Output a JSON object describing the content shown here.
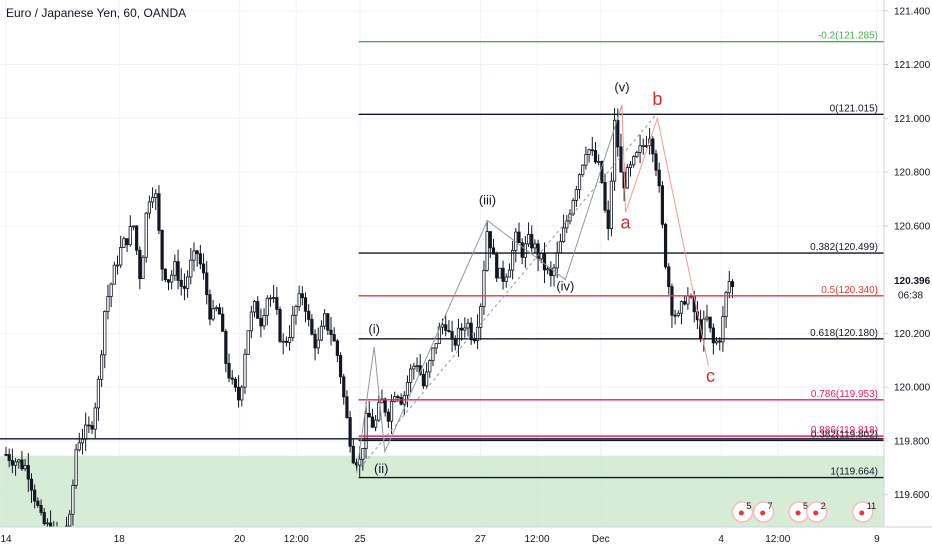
{
  "title": "Euro / Japanese Yen, 60, OANDA",
  "chart_data": {
    "type": "candlestick",
    "ylim": [
      119.48,
      121.44
    ],
    "x_ticks": [
      {
        "label": "14",
        "x": 0
      },
      {
        "label": "18",
        "x": 16
      },
      {
        "label": "20",
        "x": 33
      },
      {
        "label": "12:00",
        "x": 41
      },
      {
        "label": "25",
        "x": 50
      },
      {
        "label": "27",
        "x": 67
      },
      {
        "label": "12:00",
        "x": 75
      },
      {
        "label": "Dec",
        "x": 84
      },
      {
        "label": "4",
        "x": 101
      },
      {
        "label": "12:00",
        "x": 109
      },
      {
        "label": "9",
        "x": 123
      }
    ],
    "y_ticks": [
      {
        "label": "121.400",
        "value": 121.4
      },
      {
        "label": "121.200",
        "value": 121.2
      },
      {
        "label": "121.000",
        "value": 121.0
      },
      {
        "label": "120.800",
        "value": 120.8
      },
      {
        "label": "120.600",
        "value": 120.6
      },
      {
        "label": "120.200",
        "value": 120.2
      },
      {
        "label": "120.000",
        "value": 120.0
      },
      {
        "label": "119.800",
        "value": 119.8
      },
      {
        "label": "119.600",
        "value": 119.6
      }
    ],
    "current_price": {
      "label": "120.396",
      "value": 120.396,
      "countdown": "06:38"
    },
    "price_path": [
      [
        0,
        119.75
      ],
      [
        3,
        119.7
      ],
      [
        5,
        119.5
      ],
      [
        7,
        119.45
      ],
      [
        9,
        119.5
      ],
      [
        10,
        119.8
      ],
      [
        12,
        119.85
      ],
      [
        13,
        120.0
      ],
      [
        14,
        120.3
      ],
      [
        15,
        120.4
      ],
      [
        16,
        120.5
      ],
      [
        17,
        120.55
      ],
      [
        18,
        120.6
      ],
      [
        19,
        120.4
      ],
      [
        20,
        120.7
      ],
      [
        21,
        120.75
      ],
      [
        22,
        120.45
      ],
      [
        23,
        120.4
      ],
      [
        24,
        120.45
      ],
      [
        25,
        120.35
      ],
      [
        26,
        120.45
      ],
      [
        27,
        120.5
      ],
      [
        28,
        120.4
      ],
      [
        29,
        120.25
      ],
      [
        30,
        120.3
      ],
      [
        31,
        120.1
      ],
      [
        32,
        120.0
      ],
      [
        33,
        119.95
      ],
      [
        34,
        120.2
      ],
      [
        35,
        120.3
      ],
      [
        36,
        120.25
      ],
      [
        37,
        120.35
      ],
      [
        38,
        120.3
      ],
      [
        39,
        120.15
      ],
      [
        40,
        120.2
      ],
      [
        41,
        120.3
      ],
      [
        42,
        120.35
      ],
      [
        43,
        120.2
      ],
      [
        44,
        120.15
      ],
      [
        45,
        120.25
      ],
      [
        46,
        120.2
      ],
      [
        47,
        120.1
      ],
      [
        48,
        119.9
      ],
      [
        49,
        119.75
      ],
      [
        50,
        119.72
      ],
      [
        51,
        119.9
      ],
      [
        52,
        119.85
      ],
      [
        53,
        119.95
      ],
      [
        54,
        119.9
      ],
      [
        55,
        120.0
      ],
      [
        56,
        119.95
      ],
      [
        57,
        120.05
      ],
      [
        58,
        120.1
      ],
      [
        59,
        120.0
      ],
      [
        60,
        120.1
      ],
      [
        61,
        120.2
      ],
      [
        62,
        120.25
      ],
      [
        63,
        120.15
      ],
      [
        64,
        120.2
      ],
      [
        65,
        120.25
      ],
      [
        66,
        120.18
      ],
      [
        67,
        120.3
      ],
      [
        68,
        120.6
      ],
      [
        69,
        120.45
      ],
      [
        70,
        120.4
      ],
      [
        71,
        120.45
      ],
      [
        72,
        120.55
      ],
      [
        73,
        120.5
      ],
      [
        74,
        120.55
      ],
      [
        75,
        120.5
      ],
      [
        76,
        120.45
      ],
      [
        77,
        120.4
      ],
      [
        78,
        120.5
      ],
      [
        79,
        120.6
      ],
      [
        80,
        120.7
      ],
      [
        81,
        120.8
      ],
      [
        82,
        120.9
      ],
      [
        83,
        120.85
      ],
      [
        84,
        120.8
      ],
      [
        85,
        120.55
      ],
      [
        86,
        121.0
      ],
      [
        87,
        120.75
      ],
      [
        88,
        120.8
      ],
      [
        89,
        120.85
      ],
      [
        90,
        120.9
      ],
      [
        91,
        120.95
      ],
      [
        92,
        120.8
      ],
      [
        93,
        120.5
      ],
      [
        94,
        120.3
      ],
      [
        95,
        120.25
      ],
      [
        96,
        120.35
      ],
      [
        97,
        120.3
      ],
      [
        98,
        120.2
      ],
      [
        99,
        120.25
      ],
      [
        100,
        120.15
      ],
      [
        101,
        120.2
      ],
      [
        102,
        120.4
      ],
      [
        103,
        120.35
      ]
    ],
    "fib_levels": [
      {
        "label": "-0.2(121.285)",
        "value": 121.285,
        "color": "#4caf50"
      },
      {
        "label": "0(121.015)",
        "value": 121.015,
        "color": "#131722"
      },
      {
        "label": "0.382(120.499)",
        "value": 120.499,
        "color": "#131722"
      },
      {
        "label": "0.5(120.340)",
        "value": 120.34,
        "color": "#e53935"
      },
      {
        "label": "0.618(120.180)",
        "value": 120.18,
        "color": "#131722"
      },
      {
        "label": "0.786(119.953)",
        "value": 119.953,
        "color": "#e91e63"
      },
      {
        "label": "0.886(119.818)",
        "value": 119.818,
        "color": "#e91e63"
      },
      {
        "label": "0.382(119.802)",
        "value": 119.802,
        "color": "#131722"
      },
      {
        "label": "1(119.664)",
        "value": 119.664,
        "color": "#131722"
      }
    ],
    "support_zone": {
      "from": 119.48,
      "to": 119.745,
      "color": "#c8e6c9"
    },
    "horizontal_line": {
      "value": 119.808,
      "color": "#131722"
    },
    "wave_labels": [
      {
        "text": "(i)",
        "x": 52,
        "y": 120.2
      },
      {
        "text": "(ii)",
        "x": 53,
        "y": 119.68
      },
      {
        "text": "(iii)",
        "x": 68,
        "y": 120.68
      },
      {
        "text": "(iv)",
        "x": 79,
        "y": 120.36
      },
      {
        "text": "(v)",
        "x": 87,
        "y": 121.1
      }
    ],
    "abc_labels": [
      {
        "text": "a",
        "x": 87.5,
        "y": 120.59
      },
      {
        "text": "b",
        "x": 92,
        "y": 121.05
      },
      {
        "text": "c",
        "x": 99.5,
        "y": 120.02
      }
    ],
    "badges": [
      {
        "count": "5",
        "x": 104
      },
      {
        "count": "7",
        "x": 107
      },
      {
        "count": "5",
        "x": 112
      },
      {
        "count": "2",
        "x": 114.5
      },
      {
        "count": "11",
        "x": 121
      }
    ]
  }
}
